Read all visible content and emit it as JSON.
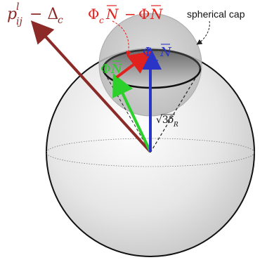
{
  "labels": {
    "p_vector": {
      "base": "p",
      "sup": "l",
      "sub": "ij",
      "rest": "− Δ",
      "rest_sub": "c"
    },
    "difference": {
      "phi1": "Φ",
      "sub1": "c",
      "n1": "N",
      "minus": "−",
      "phi2": "Φ",
      "n2": "N"
    },
    "phi_c_n": {
      "phi": "Φ",
      "sub": "c",
      "n": "N"
    },
    "phi_n": {
      "phi": "Φ",
      "n": "N"
    },
    "radius": {
      "root": "√3",
      "delta": "δ",
      "sub": "R"
    },
    "cap_label": "spherical cap"
  },
  "colors": {
    "p_vector": "#8b2a26",
    "difference": "#e0211d",
    "phi_n": "#2bd02b",
    "phi_c_n": "#2a35c8",
    "sphere_stroke": "#111111",
    "radius_line": "#222222"
  }
}
